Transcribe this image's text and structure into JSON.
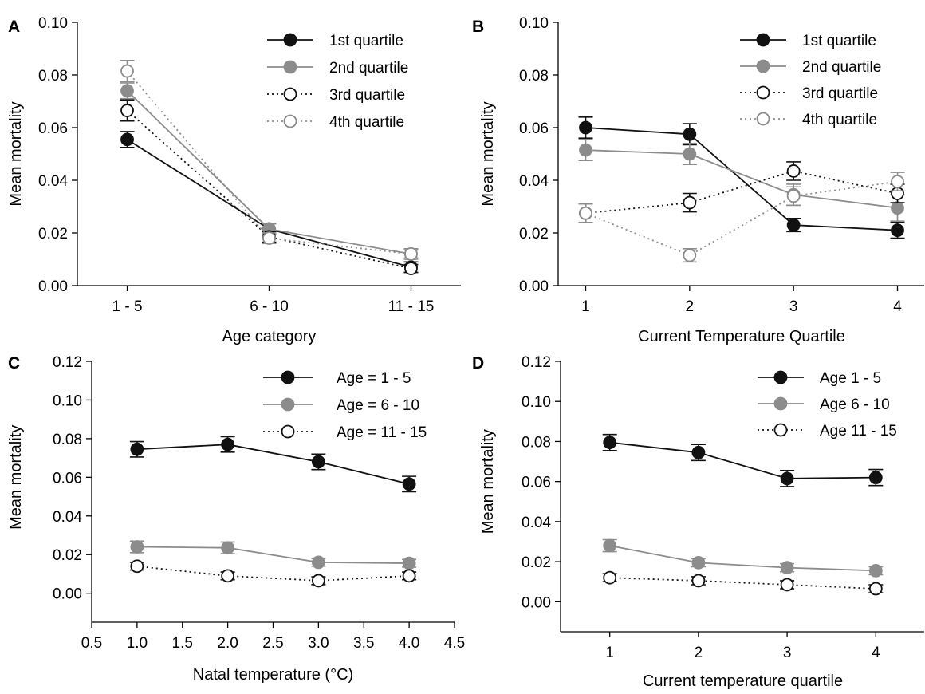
{
  "chart_data": [
    {
      "panel": "A",
      "type": "line",
      "xlabel": "Age category",
      "ylabel": "Mean mortality",
      "x_type": "category",
      "categories": [
        "1 - 5",
        "6 - 10",
        "11 - 15"
      ],
      "ylim": [
        0,
        0.1
      ],
      "yticks": [
        0,
        0.02,
        0.04,
        0.06,
        0.08,
        0.1
      ],
      "ytick_labels": [
        "0.00",
        "0.02",
        "0.04",
        "0.06",
        "0.08",
        "0.10"
      ],
      "legend_position": "top-right",
      "series": [
        {
          "name": "1st quartile",
          "style": "black-solid-filled",
          "x": [
            0,
            1,
            2
          ],
          "y": [
            0.0555,
            0.0215,
            0.007
          ],
          "err": [
            0.003,
            0.002,
            0.002
          ]
        },
        {
          "name": "2nd quartile",
          "style": "gray-solid-filled",
          "x": [
            0,
            1,
            2
          ],
          "y": [
            0.074,
            0.0215,
            0.012
          ],
          "err": [
            0.003,
            0.002,
            0.002
          ]
        },
        {
          "name": "3rd quartile",
          "style": "black-dotted-open",
          "x": [
            0,
            1,
            2
          ],
          "y": [
            0.0665,
            0.0185,
            0.0065
          ],
          "err": [
            0.004,
            0.002,
            0.0015
          ]
        },
        {
          "name": "4th quartile",
          "style": "gray-dotted-open",
          "x": [
            0,
            1,
            2
          ],
          "y": [
            0.0815,
            0.018,
            0.012
          ],
          "err": [
            0.004,
            0.002,
            0.0015
          ]
        }
      ]
    },
    {
      "panel": "B",
      "type": "line",
      "xlabel": "Current Temperature Quartile",
      "ylabel": "Mean mortality",
      "x_type": "category",
      "categories": [
        "1",
        "2",
        "3",
        "4"
      ],
      "ylim": [
        0,
        0.1
      ],
      "yticks": [
        0,
        0.02,
        0.04,
        0.06,
        0.08,
        0.1
      ],
      "ytick_labels": [
        "0.00",
        "0.02",
        "0.04",
        "0.06",
        "0.08",
        "0.10"
      ],
      "legend_position": "top-right",
      "series": [
        {
          "name": "1st quartile",
          "style": "black-solid-filled",
          "x": [
            0,
            1,
            2,
            3
          ],
          "y": [
            0.06,
            0.0575,
            0.023,
            0.021
          ],
          "err": [
            0.004,
            0.004,
            0.0025,
            0.003
          ]
        },
        {
          "name": "2nd quartile",
          "style": "gray-solid-filled",
          "x": [
            0,
            1,
            2,
            3
          ],
          "y": [
            0.0515,
            0.05,
            0.0345,
            0.0295
          ],
          "err": [
            0.004,
            0.004,
            0.004,
            0.005
          ]
        },
        {
          "name": "3rd quartile",
          "style": "black-dotted-open",
          "x": [
            0,
            1,
            2,
            3
          ],
          "y": [
            0.0275,
            0.0315,
            0.0435,
            0.035
          ],
          "err": [
            0.0035,
            0.0035,
            0.0035,
            0.0035
          ]
        },
        {
          "name": "4th quartile",
          "style": "gray-dotted-open",
          "x": [
            0,
            1,
            2,
            3
          ],
          "y": [
            0.0275,
            0.0115,
            0.034,
            0.0395
          ],
          "err": [
            0.0035,
            0.0025,
            0.0035,
            0.0035
          ]
        }
      ]
    },
    {
      "panel": "C",
      "type": "line",
      "xlabel": "Natal temperature (°C)",
      "ylabel": "Mean mortality",
      "x_type": "numeric",
      "xlim": [
        0.5,
        4.5
      ],
      "xticks": [
        0.5,
        1.0,
        1.5,
        2.0,
        2.5,
        3.0,
        3.5,
        4.0,
        4.5
      ],
      "xtick_labels": [
        "0.5",
        "1.0",
        "1.5",
        "2.0",
        "2.5",
        "3.0",
        "3.5",
        "4.0",
        "4.5"
      ],
      "ylim": [
        -0.015,
        0.12
      ],
      "yticks": [
        0,
        0.02,
        0.04,
        0.06,
        0.08,
        0.1,
        0.12
      ],
      "ytick_labels": [
        "0.00",
        "0.02",
        "0.04",
        "0.06",
        "0.08",
        "0.10",
        "0.12"
      ],
      "legend_position": "top-right",
      "series": [
        {
          "name": "Age = 1 - 5",
          "style": "black-solid-filled",
          "x": [
            1.0,
            2.0,
            3.0,
            4.0
          ],
          "y": [
            0.0745,
            0.077,
            0.068,
            0.0565
          ],
          "err": [
            0.004,
            0.004,
            0.004,
            0.004
          ]
        },
        {
          "name": "Age = 6 - 10",
          "style": "gray-solid-filled",
          "x": [
            1.0,
            2.0,
            3.0,
            4.0
          ],
          "y": [
            0.024,
            0.0235,
            0.016,
            0.0155
          ],
          "err": [
            0.003,
            0.003,
            0.002,
            0.002
          ]
        },
        {
          "name": "Age = 11 - 15",
          "style": "black-dotted-open",
          "x": [
            1.0,
            2.0,
            3.0,
            4.0
          ],
          "y": [
            0.014,
            0.009,
            0.0065,
            0.009
          ],
          "err": [
            0.002,
            0.002,
            0.002,
            0.002
          ]
        }
      ]
    },
    {
      "panel": "D",
      "type": "line",
      "xlabel": "Current temperature quartile",
      "ylabel": "Mean mortality",
      "x_type": "category",
      "categories": [
        "1",
        "2",
        "3",
        "4"
      ],
      "ylim": [
        -0.015,
        0.12
      ],
      "yticks": [
        0,
        0.02,
        0.04,
        0.06,
        0.08,
        0.1,
        0.12
      ],
      "ytick_labels": [
        "0.00",
        "0.02",
        "0.04",
        "0.06",
        "0.08",
        "0.10",
        "0.12"
      ],
      "legend_position": "top-right",
      "series": [
        {
          "name": "Age 1 - 5",
          "style": "black-solid-filled",
          "x": [
            0,
            1,
            2,
            3
          ],
          "y": [
            0.0795,
            0.0745,
            0.0615,
            0.062
          ],
          "err": [
            0.004,
            0.004,
            0.004,
            0.004
          ]
        },
        {
          "name": "Age 6 - 10",
          "style": "gray-solid-filled",
          "x": [
            0,
            1,
            2,
            3
          ],
          "y": [
            0.028,
            0.0195,
            0.017,
            0.0155
          ],
          "err": [
            0.003,
            0.002,
            0.002,
            0.002
          ]
        },
        {
          "name": "Age 11 - 15",
          "style": "black-dotted-open",
          "x": [
            0,
            1,
            2,
            3
          ],
          "y": [
            0.012,
            0.0105,
            0.0085,
            0.0065
          ],
          "err": [
            0.002,
            0.002,
            0.002,
            0.002
          ]
        }
      ]
    }
  ]
}
